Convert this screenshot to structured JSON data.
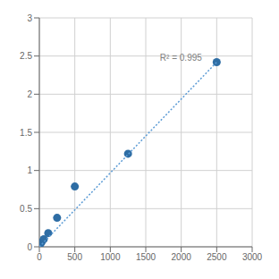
{
  "chart_data": {
    "type": "scatter",
    "grid": true,
    "xlim": [
      0,
      3000
    ],
    "ylim": [
      0,
      3
    ],
    "xticks": [
      0,
      500,
      1000,
      1500,
      2000,
      2500,
      3000
    ],
    "yticks": [
      0,
      0.5,
      1,
      1.5,
      2,
      2.5,
      3
    ],
    "series": [
      {
        "type": "scatter",
        "color": "#2e6da4",
        "x": [
          0,
          15.625,
          31.25,
          62.5,
          125,
          250,
          500,
          1250,
          2500
        ],
        "values": [
          0.01,
          0.04,
          0.06,
          0.1,
          0.18,
          0.38,
          0.79,
          1.22,
          2.42
        ]
      },
      {
        "type": "line",
        "line_style": "dotted",
        "color": "#5b9bd5",
        "x": [
          0,
          2500
        ],
        "values": [
          0.0,
          2.42
        ]
      }
    ],
    "annotations": [
      {
        "text": "R² = 0.995",
        "x": 1700,
        "y": 2.48,
        "color": "#808080"
      }
    ]
  }
}
